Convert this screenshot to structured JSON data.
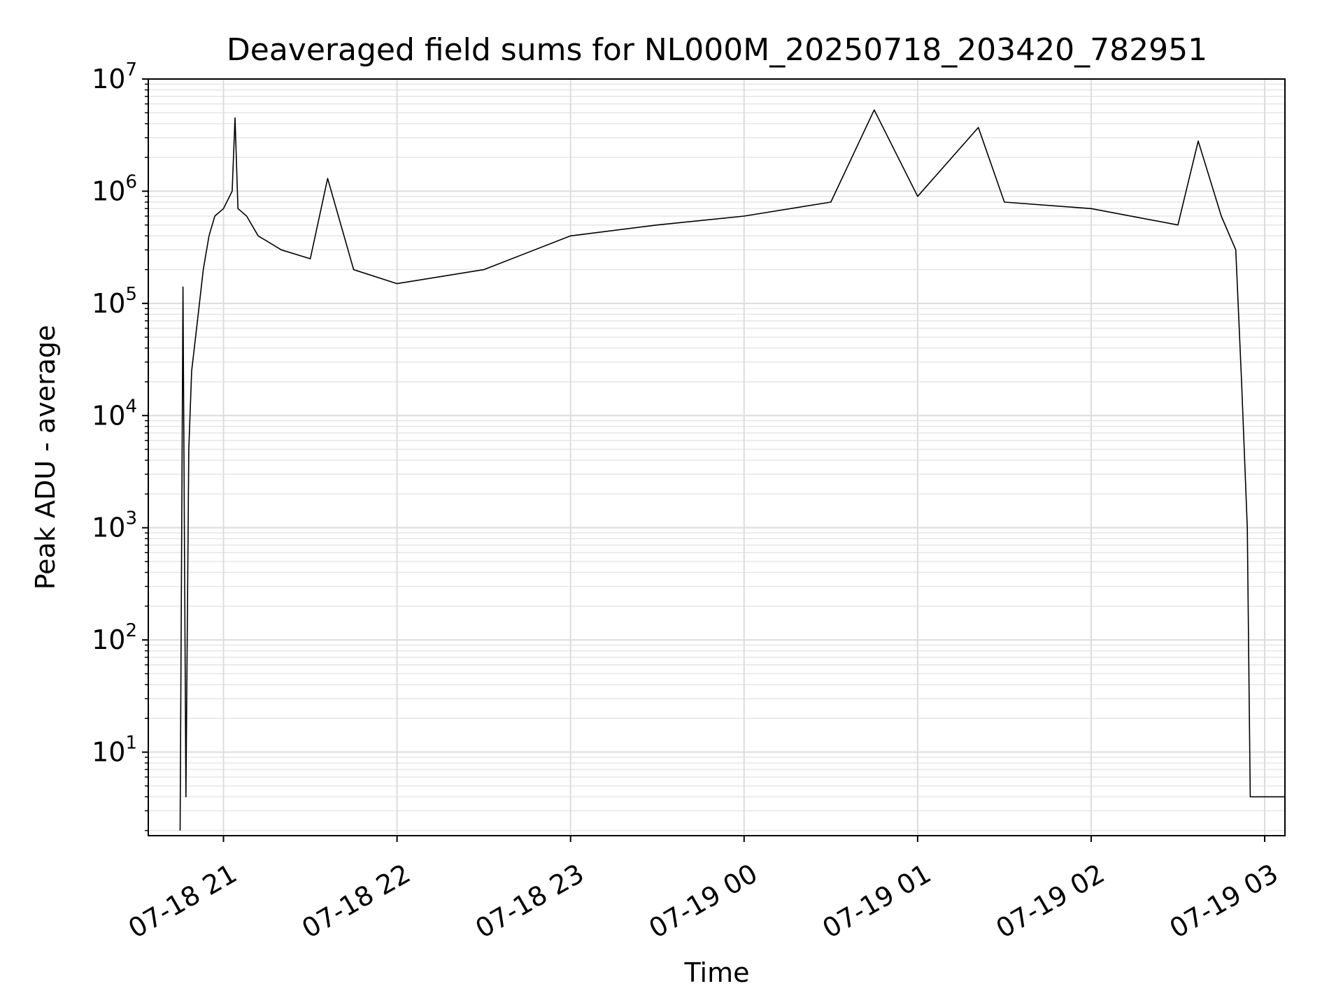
{
  "chart_data": {
    "type": "line",
    "title": "Deaveraged field sums for NL000M_20250718_203420_782951",
    "xlabel": "Time",
    "ylabel": "Peak ADU - average",
    "yscale": "log",
    "ylim": [
      1.8,
      10000000
    ],
    "xlim": [
      "2025-07-18 20:34",
      "2025-07-19 03:07"
    ],
    "grid": true,
    "grid_minor": true,
    "line_color": "#000000",
    "x_ticks": [
      "07-18 21",
      "07-18 22",
      "07-18 23",
      "07-19 00",
      "07-19 01",
      "07-19 02",
      "07-19 03"
    ],
    "x_tick_times": [
      "2025-07-18 21:00",
      "2025-07-18 22:00",
      "2025-07-18 23:00",
      "2025-07-19 00:00",
      "2025-07-19 01:00",
      "2025-07-19 02:00",
      "2025-07-19 03:00"
    ],
    "y_ticks": [
      {
        "base": "10",
        "exp": "1",
        "value": 10
      },
      {
        "base": "10",
        "exp": "2",
        "value": 100
      },
      {
        "base": "10",
        "exp": "3",
        "value": 1000
      },
      {
        "base": "10",
        "exp": "4",
        "value": 10000
      },
      {
        "base": "10",
        "exp": "5",
        "value": 100000
      },
      {
        "base": "10",
        "exp": "6",
        "value": 1000000
      },
      {
        "base": "10",
        "exp": "7",
        "value": 10000000
      }
    ],
    "series": [
      {
        "name": "",
        "x": [
          "2025-07-18 20:45",
          "2025-07-18 20:46",
          "2025-07-18 20:47",
          "2025-07-18 20:48",
          "2025-07-18 20:49",
          "2025-07-18 20:51",
          "2025-07-18 20:53",
          "2025-07-18 20:55",
          "2025-07-18 20:57",
          "2025-07-18 21:00",
          "2025-07-18 21:03",
          "2025-07-18 21:04",
          "2025-07-18 21:05",
          "2025-07-18 21:08",
          "2025-07-18 21:12",
          "2025-07-18 21:20",
          "2025-07-18 21:30",
          "2025-07-18 21:36",
          "2025-07-18 21:45",
          "2025-07-18 22:00",
          "2025-07-18 22:30",
          "2025-07-18 23:00",
          "2025-07-18 23:30",
          "2025-07-19 00:00",
          "2025-07-19 00:30",
          "2025-07-19 00:45",
          "2025-07-19 01:00",
          "2025-07-19 01:21",
          "2025-07-19 01:30",
          "2025-07-19 02:00",
          "2025-07-19 02:30",
          "2025-07-19 02:37",
          "2025-07-19 02:45",
          "2025-07-19 02:50",
          "2025-07-19 02:52",
          "2025-07-19 02:54",
          "2025-07-19 02:55",
          "2025-07-19 03:00",
          "2025-07-19 03:07"
        ],
        "y": [
          2,
          140000,
          4,
          5000,
          25000,
          70000,
          200000,
          400000,
          600000,
          700000,
          1000000,
          4500000,
          700000,
          600000,
          400000,
          300000,
          250000,
          1300000,
          200000,
          150000,
          200000,
          400000,
          500000,
          600000,
          800000,
          5300000,
          900000,
          3700000,
          800000,
          700000,
          500000,
          2800000,
          600000,
          300000,
          20000,
          1000,
          4,
          4,
          4
        ]
      }
    ]
  }
}
